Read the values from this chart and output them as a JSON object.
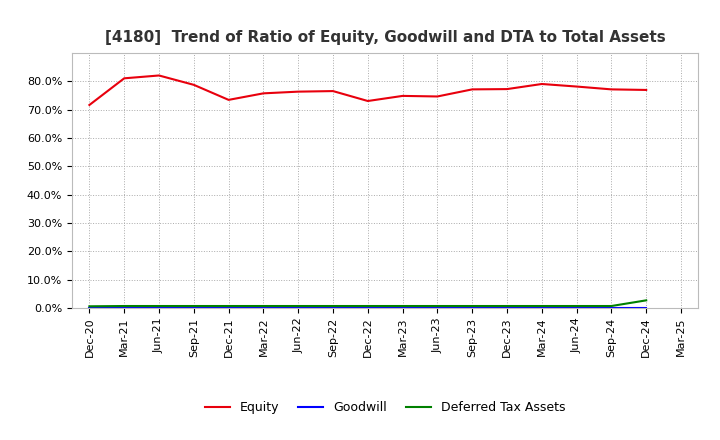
{
  "title": "[4180]  Trend of Ratio of Equity, Goodwill and DTA to Total Assets",
  "x_labels": [
    "Dec-20",
    "Mar-21",
    "Jun-21",
    "Sep-21",
    "Dec-21",
    "Mar-22",
    "Jun-22",
    "Sep-22",
    "Dec-22",
    "Mar-23",
    "Jun-23",
    "Sep-23",
    "Dec-23",
    "Mar-24",
    "Jun-24",
    "Sep-24",
    "Dec-24",
    "Mar-25"
  ],
  "equity": [
    0.716,
    0.81,
    0.82,
    0.787,
    0.734,
    0.757,
    0.763,
    0.765,
    0.73,
    0.748,
    0.746,
    0.771,
    0.772,
    0.79,
    0.781,
    0.771,
    0.769,
    null
  ],
  "goodwill": [
    0.0,
    0.0,
    0.0,
    0.0,
    0.0,
    0.0,
    0.0,
    0.0,
    0.0,
    0.0,
    0.0,
    0.0,
    0.0,
    0.0,
    0.0,
    0.0,
    0.0,
    null
  ],
  "dta": [
    0.006,
    0.007,
    0.007,
    0.007,
    0.007,
    0.007,
    0.007,
    0.007,
    0.007,
    0.007,
    0.007,
    0.007,
    0.007,
    0.007,
    0.007,
    0.007,
    0.027,
    null
  ],
  "equity_color": "#e8000d",
  "goodwill_color": "#0000ff",
  "dta_color": "#008000",
  "ylim": [
    0.0,
    0.9
  ],
  "yticks": [
    0.0,
    0.1,
    0.2,
    0.3,
    0.4,
    0.5,
    0.6,
    0.7,
    0.8
  ],
  "bg_color": "#ffffff",
  "grid_color": "#aaaaaa",
  "title_fontsize": 11,
  "legend_labels": [
    "Equity",
    "Goodwill",
    "Deferred Tax Assets"
  ]
}
